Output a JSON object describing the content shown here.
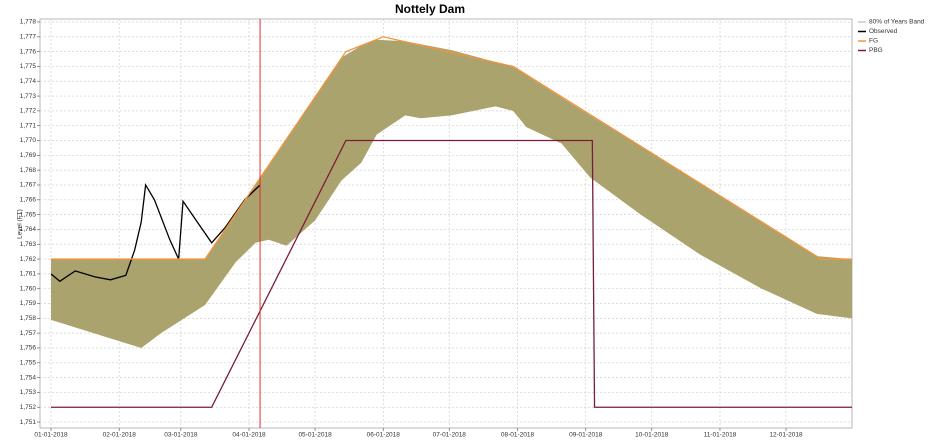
{
  "chart_data": {
    "type": "line",
    "title": "Nottely Dam",
    "ylabel": "Level (FT)",
    "xlim": [
      "2017-12-27",
      "2018-12-31"
    ],
    "xticks": [
      {
        "value": "2018-01-01",
        "label": "01-01-2018"
      },
      {
        "value": "2018-02-01",
        "label": "02-01-2018"
      },
      {
        "value": "2018-03-01",
        "label": "03-01-2018"
      },
      {
        "value": "2018-04-01",
        "label": "04-01-2018"
      },
      {
        "value": "2018-05-01",
        "label": "05-01-2018"
      },
      {
        "value": "2018-06-01",
        "label": "06-01-2018"
      },
      {
        "value": "2018-07-01",
        "label": "07-01-2018"
      },
      {
        "value": "2018-08-01",
        "label": "08-01-2018"
      },
      {
        "value": "2018-09-01",
        "label": "09-01-2018"
      },
      {
        "value": "2018-10-01",
        "label": "10-01-2018"
      },
      {
        "value": "2018-11-01",
        "label": "11-01-2018"
      },
      {
        "value": "2018-12-01",
        "label": "12-01-2018"
      }
    ],
    "ylim": [
      1750.6,
      1778.2
    ],
    "yticks": [
      {
        "value": 1751,
        "label": "1,751"
      },
      {
        "value": 1752,
        "label": "1,752"
      },
      {
        "value": 1753,
        "label": "1,753"
      },
      {
        "value": 1754,
        "label": "1,754"
      },
      {
        "value": 1755,
        "label": "1,755"
      },
      {
        "value": 1756,
        "label": "1,756"
      },
      {
        "value": 1757,
        "label": "1,757"
      },
      {
        "value": 1758,
        "label": "1,758"
      },
      {
        "value": 1759,
        "label": "1,759"
      },
      {
        "value": 1760,
        "label": "1,760"
      },
      {
        "value": 1761,
        "label": "1,761"
      },
      {
        "value": 1762,
        "label": "1,762"
      },
      {
        "value": 1763,
        "label": "1,763"
      },
      {
        "value": 1764,
        "label": "1,764"
      },
      {
        "value": 1765,
        "label": "1,765"
      },
      {
        "value": 1766,
        "label": "1,766"
      },
      {
        "value": 1767,
        "label": "1,767"
      },
      {
        "value": 1768,
        "label": "1,768"
      },
      {
        "value": 1769,
        "label": "1,769"
      },
      {
        "value": 1770,
        "label": "1,770"
      },
      {
        "value": 1771,
        "label": "1,771"
      },
      {
        "value": 1772,
        "label": "1,772"
      },
      {
        "value": 1773,
        "label": "1,773"
      },
      {
        "value": 1774,
        "label": "1,774"
      },
      {
        "value": 1775,
        "label": "1,775"
      },
      {
        "value": 1776,
        "label": "1,776"
      },
      {
        "value": 1777,
        "label": "1,777"
      },
      {
        "value": 1778,
        "label": "1,778"
      }
    ],
    "grid": true,
    "marker_date": "2018-04-06",
    "marker_color": "#e03030",
    "band": {
      "name": "80% of Years Band",
      "color": "#aaa36d",
      "legend_color": "#c8c8c8",
      "x": [
        "2018-01-01",
        "2018-02-11",
        "2018-02-20",
        "2018-03-12",
        "2018-03-26",
        "2018-04-04",
        "2018-04-10",
        "2018-04-18",
        "2018-05-01",
        "2018-05-13",
        "2018-05-22",
        "2018-05-29",
        "2018-06-11",
        "2018-06-18",
        "2018-07-02",
        "2018-07-22",
        "2018-07-30",
        "2018-08-05",
        "2018-08-21",
        "2018-09-03",
        "2018-09-26",
        "2018-10-23",
        "2018-11-20",
        "2018-12-15",
        "2018-12-31"
      ],
      "lower": [
        1757.9,
        1756,
        1757,
        1758.9,
        1761.8,
        1763.1,
        1763.3,
        1762.9,
        1764.6,
        1767.3,
        1768.5,
        1770.4,
        1771.7,
        1771.5,
        1771.7,
        1772.3,
        1772,
        1770.9,
        1769.8,
        1767.5,
        1765,
        1762.3,
        1760,
        1758.3,
        1758
      ],
      "upper": [
        1762,
        1762,
        1762,
        1762,
        1765.1,
        1767,
        1768.3,
        1770.1,
        1772.9,
        1775.6,
        1776.4,
        1776.8,
        1776.7,
        1776.5,
        1776.1,
        1775.3,
        1775,
        1774.4,
        1772.9,
        1771.7,
        1769.6,
        1767.1,
        1764.5,
        1762.2,
        1762
      ]
    },
    "series": [
      {
        "name": "Observed",
        "color": "#000000",
        "x": [
          "2018-01-01",
          "2018-01-05",
          "2018-01-12",
          "2018-01-21",
          "2018-01-28",
          "2018-02-04",
          "2018-02-08",
          "2018-02-11",
          "2018-02-13",
          "2018-02-17",
          "2018-02-24",
          "2018-02-28",
          "2018-03-02",
          "2018-03-08",
          "2018-03-15",
          "2018-03-21",
          "2018-03-30",
          "2018-04-06"
        ],
        "values": [
          1761.0,
          1760.5,
          1761.2,
          1760.8,
          1760.6,
          1760.9,
          1762.6,
          1764.5,
          1767.0,
          1766.0,
          1763.3,
          1762.0,
          1765.9,
          1764.6,
          1763.1,
          1764.1,
          1766.0,
          1767.0
        ]
      },
      {
        "name": "FG",
        "color": "#f5943c",
        "x": [
          "2018-01-01",
          "2018-03-12",
          "2018-05-15",
          "2018-06-01",
          "2018-07-30",
          "2018-12-17",
          "2018-12-31"
        ],
        "values": [
          1762,
          1762,
          1776,
          1777,
          1775,
          1762,
          1762
        ]
      },
      {
        "name": "PBG",
        "color": "#7a1c3c",
        "x": [
          "2018-01-01",
          "2018-03-15",
          "2018-05-15",
          "2018-09-04",
          "2018-09-05",
          "2018-12-31"
        ],
        "values": [
          1752,
          1752,
          1770,
          1770,
          1752,
          1752
        ]
      }
    ]
  }
}
